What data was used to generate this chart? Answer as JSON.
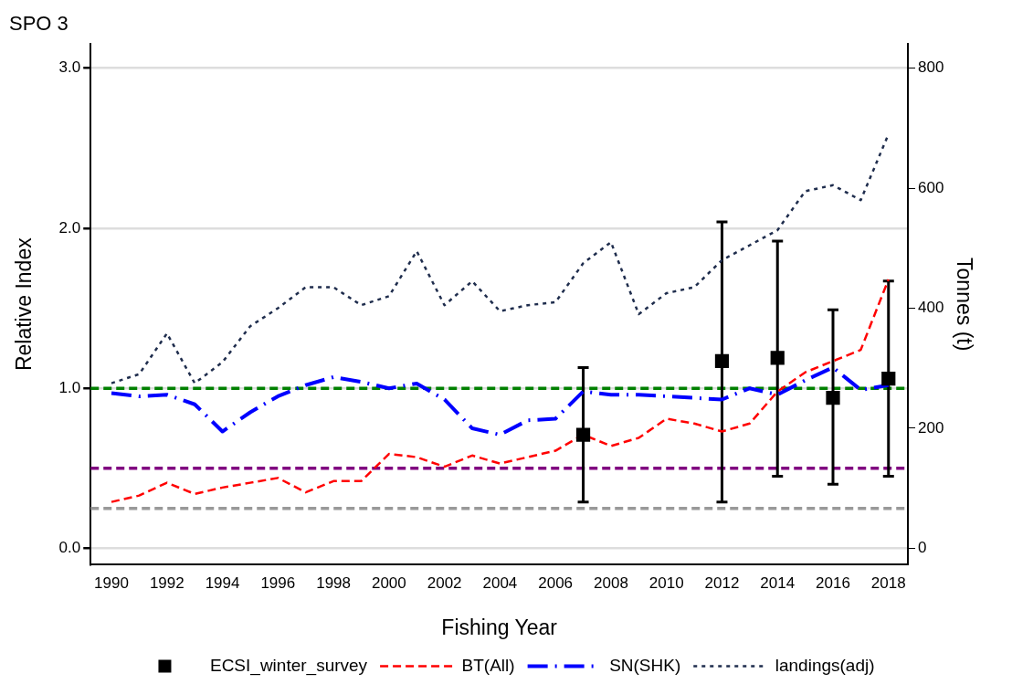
{
  "chart_data": {
    "type": "line",
    "title": "SPO 3",
    "xlabel": "Fishing Year",
    "ylabel": "Relative Index",
    "y2label": "Tonnes (t)",
    "x": [
      1990,
      1991,
      1992,
      1993,
      1994,
      1995,
      1996,
      1997,
      1998,
      1999,
      2000,
      2001,
      2002,
      2003,
      2004,
      2005,
      2006,
      2007,
      2008,
      2009,
      2010,
      2011,
      2012,
      2013,
      2014,
      2015,
      2016,
      2017,
      2018
    ],
    "series": [
      {
        "name": "ECSI_winter_survey",
        "type": "scatter",
        "marker": "square",
        "color": "#000000",
        "x": [
          2007,
          2012,
          2014,
          2016,
          2018
        ],
        "values": [
          0.71,
          1.17,
          1.19,
          0.94,
          1.06
        ],
        "errors": [
          [
            0.29,
            1.13
          ],
          [
            0.29,
            2.04
          ],
          [
            0.45,
            1.92
          ],
          [
            0.4,
            1.49
          ],
          [
            0.45,
            1.67
          ]
        ]
      },
      {
        "name": "BT(All)",
        "line_style": "dashed",
        "color": "#ff0000",
        "values": [
          0.29,
          0.33,
          0.41,
          0.34,
          0.38,
          0.41,
          0.44,
          0.35,
          0.42,
          0.42,
          0.59,
          0.57,
          0.51,
          0.58,
          0.53,
          0.57,
          0.61,
          0.71,
          0.64,
          0.69,
          0.81,
          0.78,
          0.73,
          0.78,
          0.98,
          1.1,
          1.17,
          1.24,
          1.68
        ]
      },
      {
        "name": "SN(SHK)",
        "line_style": "dashdot",
        "color": "#0000ff",
        "values": [
          0.97,
          0.95,
          0.96,
          0.9,
          0.73,
          0.85,
          0.95,
          1.02,
          1.07,
          1.04,
          1.0,
          1.03,
          0.93,
          0.75,
          0.71,
          0.8,
          0.81,
          0.98,
          0.96,
          0.96,
          0.95,
          0.94,
          0.93,
          1.0,
          0.96,
          1.05,
          1.13,
          0.99,
          1.02
        ]
      },
      {
        "name": "landings(adj)",
        "line_style": "dotted",
        "axis": "y2",
        "color": "#1f2d4d",
        "values": [
          275,
          290,
          358,
          275,
          310,
          370,
          400,
          435,
          435,
          405,
          420,
          495,
          405,
          445,
          395,
          405,
          410,
          475,
          510,
          390,
          425,
          435,
          480,
          505,
          530,
          595,
          605,
          580,
          690
        ]
      }
    ],
    "xlim": [
      1989.25,
      2018.7
    ],
    "xticks": [
      1990,
      1992,
      1994,
      1996,
      1998,
      2000,
      2002,
      2004,
      2006,
      2008,
      2010,
      2012,
      2014,
      2016,
      2018
    ],
    "ylim": [
      -0.1,
      3.15
    ],
    "yticks": [
      {
        "value": 0,
        "label": "0.0"
      },
      {
        "value": 1,
        "label": "1.0"
      },
      {
        "value": 2,
        "label": "2.0"
      },
      {
        "value": 3,
        "label": "3.0"
      }
    ],
    "y2lim": [
      -27,
      840
    ],
    "y2ticks": [
      0,
      200,
      400,
      600,
      800
    ],
    "ref_lines": [
      {
        "axis": "y",
        "value": 1,
        "color": "#008000",
        "line_style": "dashed"
      },
      {
        "axis": "y",
        "value": 0.5,
        "color": "#800080",
        "line_style": "dashed"
      },
      {
        "axis": "y",
        "value": 0.25,
        "color": "#999999",
        "line_style": "dashed"
      }
    ],
    "grid": "y",
    "legend": "bottom",
    "marker": "none"
  }
}
